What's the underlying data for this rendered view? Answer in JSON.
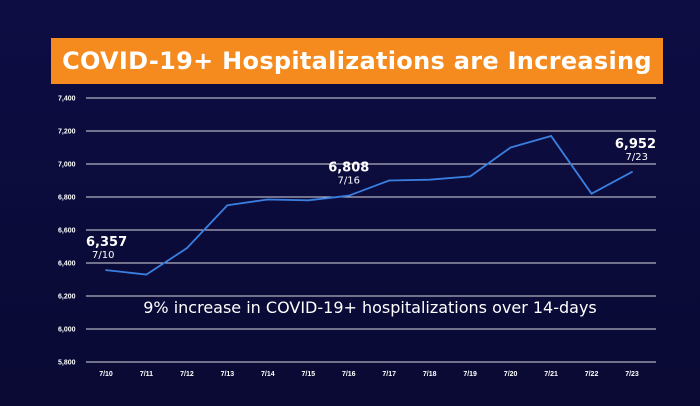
{
  "chart_data": {
    "type": "line",
    "title": "COVID-19+ Hospitalizations are Increasing",
    "annotation": "9% increase in COVID-19+ hospitalizations over 14-days",
    "categories": [
      "7/10",
      "7/11",
      "7/12",
      "7/13",
      "7/14",
      "7/15",
      "7/16",
      "7/17",
      "7/18",
      "7/19",
      "7/20",
      "7/21",
      "7/22",
      "7/23"
    ],
    "values": [
      6357,
      6330,
      6490,
      6750,
      6785,
      6780,
      6808,
      6900,
      6905,
      6925,
      7100,
      7170,
      6820,
      6952
    ],
    "ylim": [
      5800,
      7400
    ],
    "yticks": [
      5800,
      6000,
      6200,
      6400,
      6600,
      6800,
      7000,
      7200,
      7400
    ],
    "ytick_labels": [
      "5,800",
      "6,000",
      "6,200",
      "6,400",
      "6,600",
      "6,800",
      "7,000",
      "7,200",
      "7,400"
    ],
    "data_labels": [
      {
        "value": "6,357",
        "date": "7/10",
        "index": 0
      },
      {
        "value": "6,808",
        "date": "7/16",
        "index": 6
      },
      {
        "value": "6,952",
        "date": "7/23",
        "index": 13
      }
    ],
    "grid": true,
    "colors": {
      "line": "#3a7fe0",
      "grid": "#ffffff",
      "banner": "#f58a1f",
      "background": "#0b0b3a"
    }
  }
}
